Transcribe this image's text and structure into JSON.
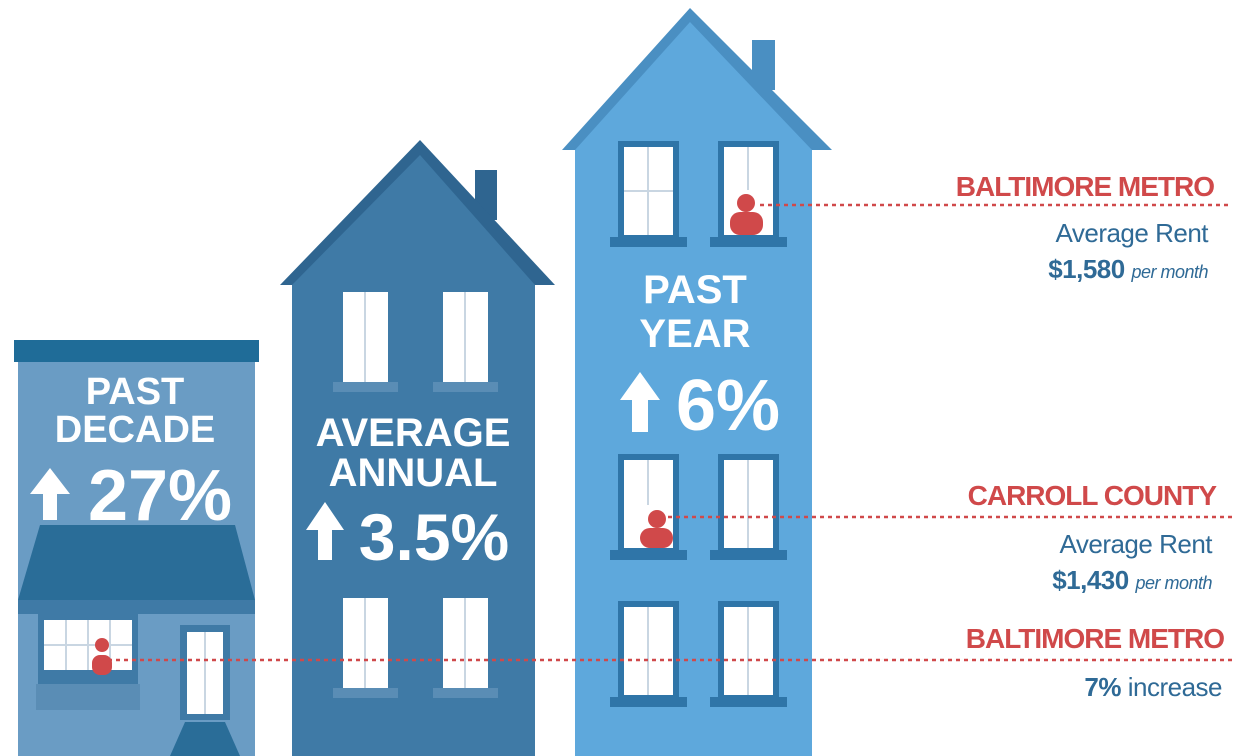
{
  "buildings": [
    {
      "label": [
        "PAST",
        "DECADE"
      ],
      "value": "27%"
    },
    {
      "label": [
        "AVERAGE",
        "ANNUAL"
      ],
      "value": "3.5%"
    },
    {
      "label": [
        "PAST",
        "YEAR"
      ],
      "value": "6%"
    }
  ],
  "callouts": [
    {
      "region": "BALTIMORE METRO",
      "label": "Average Rent",
      "amount": "$1,580",
      "unit": "per month"
    },
    {
      "region": "CARROLL COUNTY",
      "label": "Average Rent",
      "amount": "$1,430",
      "unit": "per month"
    },
    {
      "region": "BALTIMORE METRO",
      "amount": "7%",
      "label": "increase"
    }
  ]
}
